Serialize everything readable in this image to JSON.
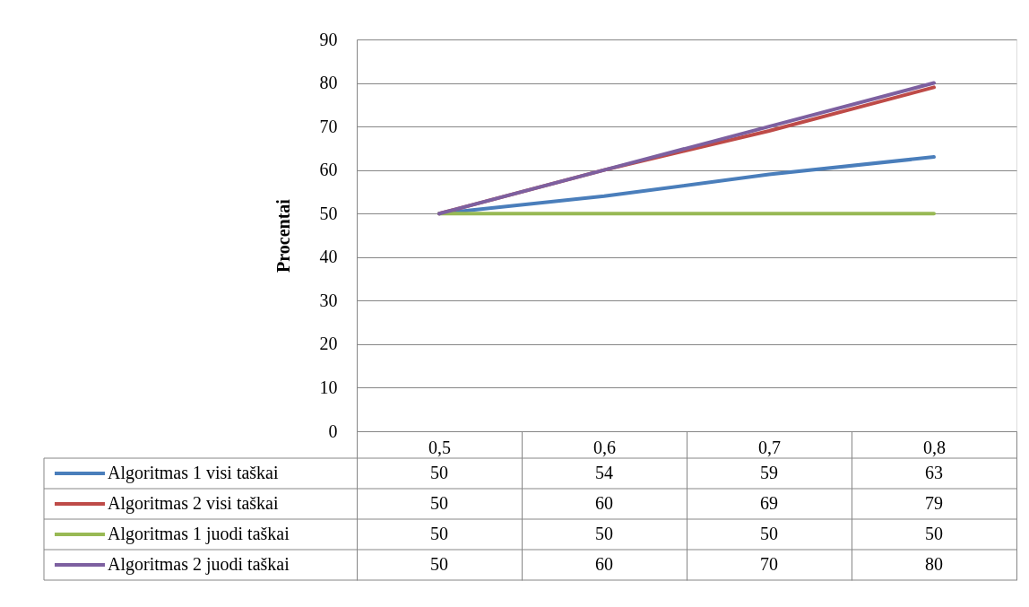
{
  "chart_data": {
    "type": "line",
    "ylabel": "Procentai",
    "categories": [
      "0,5",
      "0,6",
      "0,7",
      "0,8"
    ],
    "series": [
      {
        "name": "Algoritmas 1 visi taškai",
        "color": "#4a7ebb",
        "values": [
          50,
          54,
          59,
          63
        ]
      },
      {
        "name": "Algoritmas 2 visi taškai",
        "color": "#be4b48",
        "values": [
          50,
          60,
          69,
          79
        ]
      },
      {
        "name": "Algoritmas 1 juodi taškai",
        "color": "#98b954",
        "values": [
          50,
          50,
          50,
          50
        ]
      },
      {
        "name": "Algoritmas 2 juodi taškai",
        "color": "#7d60a0",
        "values": [
          50,
          60,
          70,
          80
        ]
      }
    ],
    "ylim": [
      0,
      90
    ],
    "yticks": [
      0,
      10,
      20,
      30,
      40,
      50,
      60,
      70,
      80,
      90
    ],
    "grid": "y",
    "legend": "bottom left",
    "data_labels": true,
    "marker": "none",
    "line_style": "solid"
  }
}
